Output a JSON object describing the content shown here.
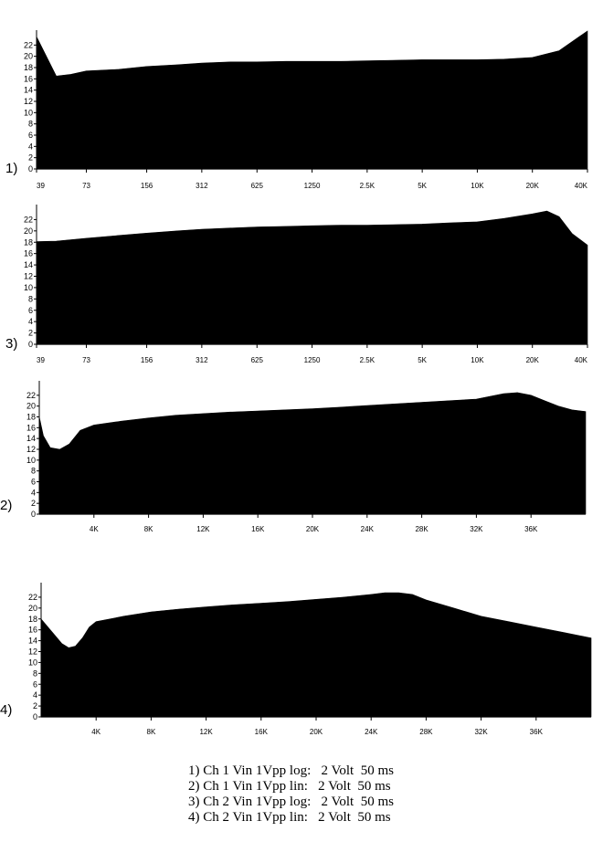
{
  "chart_data": [
    {
      "type": "area",
      "plot_label": "1)",
      "scale": "log",
      "ylim": [
        0,
        24
      ],
      "yticks": [
        "0",
        "2",
        "4",
        "6",
        "8",
        "10",
        "12",
        "14",
        "16",
        "18",
        "20",
        "22"
      ],
      "xticks": [
        "39",
        "73",
        "156",
        "312",
        "625",
        "1250",
        "2.5K",
        "5K",
        "10K",
        "20K",
        "40K"
      ],
      "x": [
        "39",
        "50",
        "60",
        "73",
        "110",
        "156",
        "230",
        "312",
        "450",
        "625",
        "900",
        "1250",
        "1800",
        "2.5K",
        "3.5K",
        "5K",
        "7K",
        "10K",
        "14K",
        "20K",
        "28K",
        "40K"
      ],
      "y": [
        23.5,
        16.5,
        16.8,
        17.4,
        17.7,
        18.2,
        18.5,
        18.8,
        19.0,
        19.0,
        19.1,
        19.1,
        19.1,
        19.2,
        19.3,
        19.4,
        19.4,
        19.4,
        19.5,
        19.8,
        21.0,
        24.5
      ]
    },
    {
      "type": "area",
      "plot_label": "3)",
      "scale": "log",
      "ylim": [
        0,
        24
      ],
      "yticks": [
        "0",
        "2",
        "4",
        "6",
        "8",
        "10",
        "12",
        "14",
        "16",
        "18",
        "20",
        "22"
      ],
      "xticks": [
        "39",
        "73",
        "156",
        "312",
        "625",
        "1250",
        "2.5K",
        "5K",
        "10K",
        "20K",
        "40K"
      ],
      "x": [
        "39",
        "50",
        "73",
        "110",
        "156",
        "230",
        "312",
        "450",
        "625",
        "900",
        "1250",
        "1800",
        "2.5K",
        "3.5K",
        "5K",
        "7K",
        "10K",
        "14K",
        "20K",
        "24K",
        "28K",
        "33K",
        "40K"
      ],
      "y": [
        18.1,
        18.2,
        18.7,
        19.2,
        19.6,
        20.0,
        20.3,
        20.5,
        20.7,
        20.8,
        20.9,
        21.0,
        21.0,
        21.1,
        21.2,
        21.4,
        21.6,
        22.2,
        23.0,
        23.5,
        22.5,
        19.5,
        17.5
      ]
    },
    {
      "type": "area",
      "plot_label": "2)",
      "scale": "linear",
      "ylim": [
        0,
        24
      ],
      "yticks": [
        "0",
        "2",
        "4",
        "6",
        "8",
        "10",
        "12",
        "14",
        "16",
        "18",
        "20",
        "22"
      ],
      "xticks": [
        "4K",
        "8K",
        "12K",
        "16K",
        "20K",
        "24K",
        "28K",
        "32K",
        "36K"
      ],
      "x_k": [
        0,
        0.3,
        0.8,
        1.5,
        2.2,
        3.0,
        4.0,
        6.0,
        8.0,
        10.0,
        12.0,
        14.0,
        16.0,
        18.0,
        20.0,
        22.0,
        24.0,
        26.0,
        28.0,
        30.0,
        32.0,
        33.0,
        34.0,
        35.0,
        36.0,
        37.0,
        38.0,
        39.0,
        40.0
      ],
      "y": [
        18.0,
        14.5,
        12.3,
        12.0,
        13.0,
        15.5,
        16.5,
        17.2,
        17.8,
        18.3,
        18.6,
        18.9,
        19.1,
        19.3,
        19.5,
        19.8,
        20.1,
        20.4,
        20.7,
        21.0,
        21.3,
        21.8,
        22.3,
        22.5,
        22.0,
        21.0,
        20.0,
        19.3,
        19.0
      ]
    },
    {
      "type": "area",
      "plot_label": "4)",
      "scale": "linear",
      "ylim": [
        0,
        24
      ],
      "yticks": [
        "0",
        "2",
        "4",
        "6",
        "8",
        "10",
        "12",
        "14",
        "16",
        "18",
        "20",
        "22"
      ],
      "xticks": [
        "4K",
        "8K",
        "12K",
        "16K",
        "20K",
        "24K",
        "28K",
        "32K",
        "36K"
      ],
      "x_k": [
        0,
        0.5,
        1.0,
        1.5,
        2.0,
        2.5,
        3.0,
        3.5,
        4.0,
        5.0,
        6.0,
        8.0,
        10.0,
        12.0,
        14.0,
        16.0,
        18.0,
        20.0,
        22.0,
        24.0,
        25.0,
        26.0,
        27.0,
        28.0,
        30.0,
        32.0,
        34.0,
        36.0,
        38.0,
        40.0
      ],
      "y": [
        18.0,
        16.5,
        15.0,
        13.5,
        12.7,
        13.0,
        14.5,
        16.5,
        17.5,
        18.0,
        18.5,
        19.3,
        19.8,
        20.2,
        20.6,
        20.9,
        21.2,
        21.6,
        22.0,
        22.5,
        22.8,
        22.8,
        22.5,
        21.5,
        20.0,
        18.5,
        17.5,
        16.5,
        15.5,
        14.5
      ]
    }
  ],
  "caption": [
    "1) Ch 1 Vin 1Vpp log:   2 Volt  50 ms",
    "2) Ch 1 Vin 1Vpp lin:   2 Volt  50 ms",
    "3) Ch 2 Vin 1Vpp log:   2 Volt  50 ms",
    "4) Ch 2 Vin 1Vpp lin:   2 Volt  50 ms"
  ]
}
